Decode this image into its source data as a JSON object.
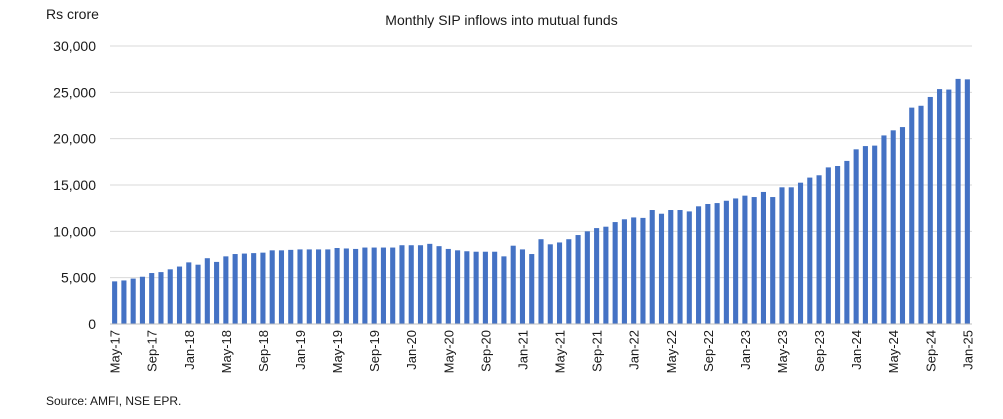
{
  "chart_data": {
    "type": "bar",
    "title": "Monthly SIP inflows into mutual funds",
    "ylabel": "Rs crore",
    "xlabel": "",
    "ylim": [
      0,
      30000
    ],
    "yticks": [
      0,
      5000,
      10000,
      15000,
      20000,
      25000,
      30000
    ],
    "ytick_labels": [
      "0",
      "5,000",
      "10,000",
      "15,000",
      "20,000",
      "25,000",
      "30,000"
    ],
    "grid": true,
    "legend": "none",
    "bar_color": "#4472C4",
    "categories": [
      "May-17",
      "Jun-17",
      "Jul-17",
      "Aug-17",
      "Sep-17",
      "Oct-17",
      "Nov-17",
      "Dec-17",
      "Jan-18",
      "Feb-18",
      "Mar-18",
      "Apr-18",
      "May-18",
      "Jun-18",
      "Jul-18",
      "Aug-18",
      "Sep-18",
      "Oct-18",
      "Nov-18",
      "Dec-18",
      "Jan-19",
      "Feb-19",
      "Mar-19",
      "Apr-19",
      "May-19",
      "Jun-19",
      "Jul-19",
      "Aug-19",
      "Sep-19",
      "Oct-19",
      "Nov-19",
      "Dec-19",
      "Jan-20",
      "Feb-20",
      "Mar-20",
      "Apr-20",
      "May-20",
      "Jun-20",
      "Jul-20",
      "Aug-20",
      "Sep-20",
      "Oct-20",
      "Nov-20",
      "Dec-20",
      "Jan-21",
      "Feb-21",
      "Mar-21",
      "Apr-21",
      "May-21",
      "Jun-21",
      "Jul-21",
      "Aug-21",
      "Sep-21",
      "Oct-21",
      "Nov-21",
      "Dec-21",
      "Jan-22",
      "Feb-22",
      "Mar-22",
      "Apr-22",
      "May-22",
      "Jun-22",
      "Jul-22",
      "Aug-22",
      "Sep-22",
      "Oct-22",
      "Nov-22",
      "Dec-22",
      "Jan-23",
      "Feb-23",
      "Mar-23",
      "Apr-23",
      "May-23",
      "Jun-23",
      "Jul-23",
      "Aug-23",
      "Sep-23",
      "Oct-23",
      "Nov-23",
      "Dec-23",
      "Jan-24",
      "Feb-24",
      "Mar-24",
      "Apr-24",
      "May-24",
      "Jun-24",
      "Jul-24",
      "Aug-24",
      "Sep-24",
      "Oct-24",
      "Nov-24",
      "Dec-24",
      "Jan-25"
    ],
    "values": [
      4600,
      4700,
      4900,
      5100,
      5500,
      5600,
      5900,
      6200,
      6650,
      6400,
      7100,
      6700,
      7300,
      7550,
      7600,
      7650,
      7700,
      7950,
      7950,
      8000,
      8050,
      8050,
      8050,
      8050,
      8200,
      8150,
      8100,
      8250,
      8250,
      8250,
      8250,
      8500,
      8500,
      8500,
      8650,
      8400,
      8100,
      7950,
      7850,
      7800,
      7800,
      7800,
      7300,
      8450,
      8050,
      7550,
      9150,
      8600,
      8800,
      9150,
      9600,
      10000,
      10350,
      10500,
      11000,
      11300,
      11500,
      11450,
      12300,
      11900,
      12300,
      12300,
      12150,
      12700,
      12950,
      13050,
      13300,
      13550,
      13850,
      13700,
      14250,
      13700,
      14750,
      14750,
      15250,
      15800,
      16050,
      16900,
      17050,
      17600,
      18850,
      19200,
      19250,
      20350,
      20900,
      21250,
      23350,
      23550,
      24500,
      25350,
      25300,
      26450,
      26400
    ],
    "xtick_labels": [
      "May-17",
      "Sep-17",
      "Jan-18",
      "May-18",
      "Sep-18",
      "Jan-19",
      "May-19",
      "Sep-19",
      "Jan-20",
      "May-20",
      "Sep-20",
      "Jan-21",
      "May-21",
      "Sep-21",
      "Jan-22",
      "May-22",
      "Sep-22",
      "Jan-23",
      "May-23",
      "Sep-23",
      "Jan-24",
      "May-24",
      "Sep-24",
      "Jan-25"
    ],
    "source": "Source: AMFI, NSE EPR."
  }
}
